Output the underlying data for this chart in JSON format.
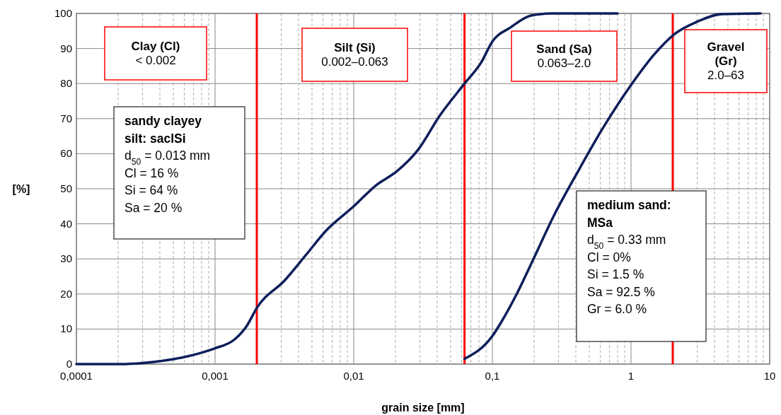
{
  "chart_data": {
    "type": "line",
    "xlabel": "grain size [mm]",
    "ylabel": "[%]",
    "log": "x",
    "grid": true,
    "marker": "none",
    "line_style": "solid",
    "xlim": [
      0.0001,
      10
    ],
    "xticks": [
      {
        "value": 0.0001,
        "label": "0,0001"
      },
      {
        "value": 0.001,
        "label": "0,001"
      },
      {
        "value": 0.01,
        "label": "0,01"
      },
      {
        "value": 0.1,
        "label": "0,1"
      },
      1,
      10
    ],
    "ylim": [
      0,
      100
    ],
    "yticks": [
      0,
      10,
      20,
      30,
      40,
      50,
      60,
      70,
      80,
      90,
      100
    ],
    "series": [
      {
        "color": "#0e1f5b",
        "x": [
          0.0001,
          0.00021,
          0.0003,
          0.00043,
          0.0006,
          0.00076,
          0.001,
          0.00138,
          0.0017,
          0.002,
          0.0032,
          0.0045,
          0.0063,
          0.01,
          0.0145,
          0.0205,
          0.029,
          0.042,
          0.063,
          0.083,
          0.1,
          0.135,
          0.19,
          0.27,
          0.8
        ],
        "values": [
          0,
          0,
          0.3,
          1,
          2,
          3,
          4.5,
          7,
          11,
          16,
          24,
          31,
          38,
          45,
          51,
          55,
          61,
          71,
          80,
          86,
          92,
          96,
          99.4,
          100,
          100
        ]
      },
      {
        "color": "#0e1f5b",
        "x": [
          0.063,
          0.1,
          0.116,
          0.149,
          0.198,
          0.275,
          0.41,
          0.62,
          1.0,
          1.49,
          2.07,
          2.98,
          4.5,
          8.6
        ],
        "values": [
          1.5,
          8,
          12,
          19.8,
          30,
          42,
          54.6,
          67,
          79.6,
          88.6,
          94.2,
          97.6,
          99.8,
          100
        ]
      }
    ],
    "ref_lines": [
      {
        "axis": "x",
        "value": 0.002,
        "color": "#ff0000"
      },
      {
        "axis": "x",
        "value": 0.063,
        "color": "#ff0000"
      },
      {
        "axis": "x",
        "value": 2.0,
        "color": "#ff0000"
      }
    ],
    "annotations": [
      "Clay (Cl)\n< 0.002",
      "Silt (Si)\n0.002–0.063",
      "Sand (Sa)\n0.063–2.0",
      "Gravel\n(Gr)\n2.0–63",
      "sandy clayey\nsilt: saclSi",
      "d$_{50}$ = 0.013 mm\nCl = 16 %\nSi = 64 %\nSa = 20 %",
      "medium sand:\nMSa",
      "d$_{50}$ = 0.33 mm\nCl = 0%\nSi = 1.5 %\nSa = 92.5 %\nGr = 6.0 %"
    ]
  }
}
